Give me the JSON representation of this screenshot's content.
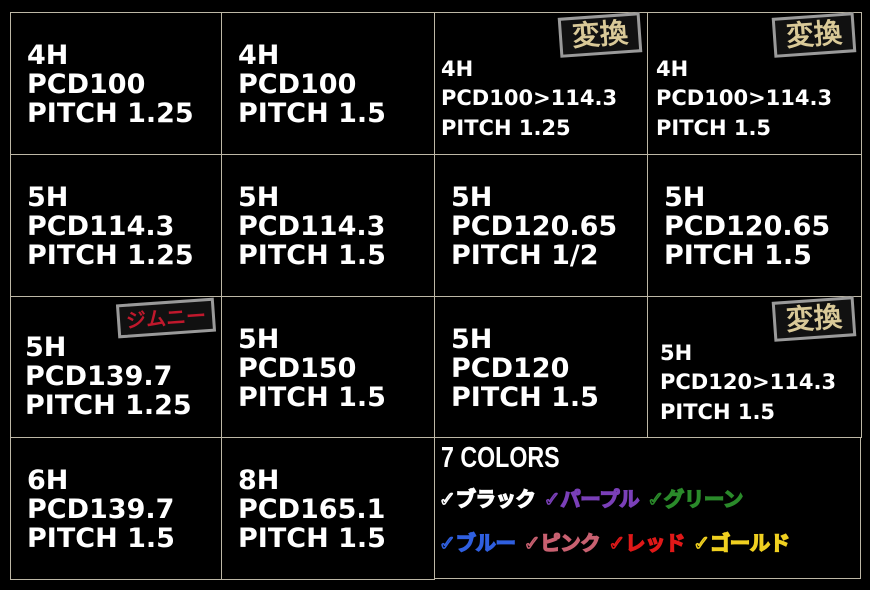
{
  "cells": [
    {
      "holes": "4H",
      "pcd": "PCD100",
      "pitch": "PITCH 1.25"
    },
    {
      "holes": "4H",
      "pcd": "PCD100",
      "pitch": "PITCH 1.5"
    },
    {
      "holes": "4H",
      "pcd": "PCD100>114.3",
      "pitch": "PITCH 1.25",
      "badge": "変換"
    },
    {
      "holes": "4H",
      "pcd": "PCD100>114.3",
      "pitch": "PITCH 1.5",
      "badge": "変換"
    },
    {
      "holes": "5H",
      "pcd": "PCD114.3",
      "pitch": "PITCH 1.25"
    },
    {
      "holes": "5H",
      "pcd": "PCD114.3",
      "pitch": "PITCH 1.5"
    },
    {
      "holes": "5H",
      "pcd": "PCD120.65",
      "pitch": "PITCH 1/2"
    },
    {
      "holes": "5H",
      "pcd": "PCD120.65",
      "pitch": "PITCH 1.5"
    },
    {
      "holes": "5H",
      "pcd": "PCD139.7",
      "pitch": "PITCH 1.25",
      "badge": "ジムニー"
    },
    {
      "holes": "5H",
      "pcd": "PCD150",
      "pitch": "PITCH 1.5"
    },
    {
      "holes": "5H",
      "pcd": "PCD120",
      "pitch": "PITCH 1.5"
    },
    {
      "holes": "5H",
      "pcd": "PCD120>114.3",
      "pitch": "PITCH 1.5",
      "badge": "変換"
    },
    {
      "holes": "6H",
      "pcd": "PCD139.7",
      "pitch": "PITCH 1.5"
    },
    {
      "holes": "8H",
      "pcd": "PCD165.1",
      "pitch": "PITCH 1.5"
    }
  ],
  "colors": {
    "title": "7 COLORS",
    "check": "✓",
    "items": [
      {
        "label": "ブラック",
        "color": "#ffffff"
      },
      {
        "label": "パープル",
        "color": "#7a3fb8"
      },
      {
        "label": "グリーン",
        "color": "#2a8a2a"
      },
      {
        "label": "ブルー",
        "color": "#2f5fe0"
      },
      {
        "label": "ピンク",
        "color": "#c86070"
      },
      {
        "label": "レッド",
        "color": "#e01818"
      },
      {
        "label": "ゴールド",
        "color": "#f0d020"
      }
    ]
  }
}
